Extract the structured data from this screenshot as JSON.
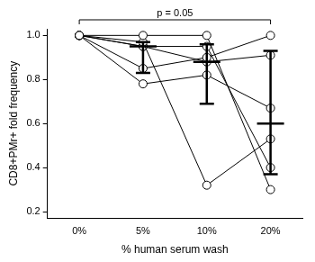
{
  "chart_data": {
    "type": "line",
    "categories": [
      "0%",
      "5%",
      "10%",
      "20%"
    ],
    "series": [
      {
        "color": "#000000",
        "marker": "circle",
        "line_style": "solid",
        "values": [
          1.0,
          1.0,
          1.0,
          0.3
        ]
      },
      {
        "color": "#000000",
        "marker": "circle",
        "line_style": "solid",
        "values": [
          1.0,
          0.97,
          0.32,
          0.53
        ]
      },
      {
        "color": "#000000",
        "marker": "circle",
        "line_style": "solid",
        "values": [
          1.0,
          0.95,
          0.95,
          0.4
        ]
      },
      {
        "color": "#000000",
        "marker": "circle",
        "line_style": "solid",
        "values": [
          1.0,
          0.85,
          0.9,
          1.0
        ]
      },
      {
        "color": "#000000",
        "marker": "circle",
        "line_style": "solid",
        "values": [
          1.0,
          0.78,
          0.82,
          0.67
        ]
      },
      {
        "color": "#000000",
        "marker": "circle",
        "line_style": "solid",
        "values": [
          1.0,
          0.95,
          0.88,
          0.91
        ]
      }
    ],
    "summary": {
      "color": "#000000",
      "center": [
        null,
        0.95,
        0.88,
        0.6
      ],
      "lower": [
        null,
        0.83,
        0.69,
        0.37
      ],
      "upper": [
        null,
        0.97,
        0.96,
        0.93
      ]
    },
    "annotation": {
      "text": "p = 0.05",
      "from": "0%",
      "to": "20%"
    },
    "x_label": "% human serum wash",
    "y_label": "CD8+PMr+ fold frequency",
    "ylim": [
      0.17,
      1.03
    ],
    "yticks": [
      0.2,
      0.4,
      0.6,
      0.8,
      {
        "value": 1,
        "label": "1.0"
      }
    ],
    "grid": false
  }
}
